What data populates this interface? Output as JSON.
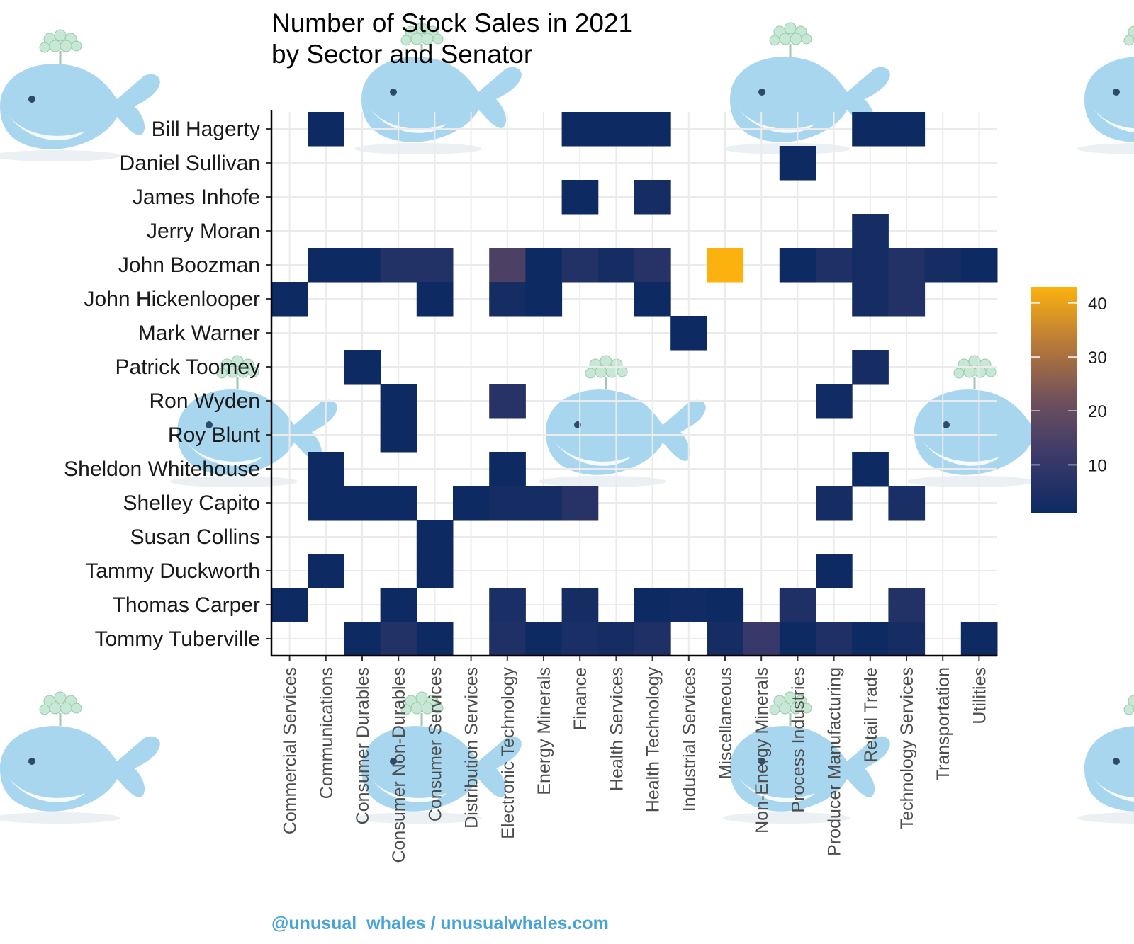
{
  "chart_data": {
    "type": "heatmap",
    "title": "Number of Stock Sales in 2021",
    "subtitle": "by Sector and Senator",
    "xlabel": "",
    "ylabel": "",
    "x_categories": [
      "Commercial Services",
      "Communications",
      "Consumer Durables",
      "Consumer Non-Durables",
      "Consumer Services",
      "Distribution Services",
      "Electronic Technology",
      "Energy Minerals",
      "Finance",
      "Health Services",
      "Health Technology",
      "Industrial Services",
      "Miscellaneous",
      "Non-Energy Minerals",
      "Process Industries",
      "Producer Manufacturing",
      "Retail Trade",
      "Technology Services",
      "Transportation",
      "Utilities"
    ],
    "y_categories": [
      "Bill Hagerty",
      "Daniel Sullivan",
      "James Inhofe",
      "Jerry Moran",
      "John Boozman",
      "John Hickenlooper",
      "Mark Warner",
      "Patrick Toomey",
      "Ron Wyden",
      "Roy Blunt",
      "Sheldon Whitehouse",
      "Shelley Capito",
      "Susan Collins",
      "Tammy Duckworth",
      "Thomas Carper",
      "Tommy Tuberville"
    ],
    "values": [
      [
        0,
        1,
        0,
        0,
        0,
        0,
        0,
        0,
        1,
        1,
        1,
        0,
        0,
        0,
        0,
        0,
        1,
        1,
        0,
        0
      ],
      [
        0,
        0,
        0,
        0,
        0,
        0,
        0,
        0,
        0,
        0,
        0,
        0,
        0,
        0,
        1,
        0,
        0,
        0,
        0,
        0
      ],
      [
        0,
        0,
        0,
        0,
        0,
        0,
        0,
        0,
        1,
        0,
        3,
        0,
        0,
        0,
        0,
        0,
        0,
        0,
        0,
        0
      ],
      [
        0,
        0,
        0,
        0,
        0,
        0,
        0,
        0,
        0,
        0,
        0,
        0,
        0,
        0,
        0,
        0,
        3,
        0,
        0,
        0
      ],
      [
        0,
        1,
        1,
        6,
        6,
        0,
        15,
        1,
        6,
        3,
        7,
        0,
        43,
        0,
        1,
        5,
        3,
        6,
        3,
        1
      ],
      [
        1,
        0,
        0,
        0,
        1,
        0,
        3,
        1,
        0,
        0,
        1,
        0,
        0,
        0,
        0,
        0,
        3,
        6,
        0,
        0
      ],
      [
        0,
        0,
        0,
        0,
        0,
        0,
        0,
        0,
        0,
        0,
        0,
        1,
        0,
        0,
        0,
        0,
        0,
        0,
        0,
        0
      ],
      [
        0,
        0,
        1,
        0,
        0,
        0,
        0,
        0,
        0,
        0,
        0,
        0,
        0,
        0,
        0,
        0,
        3,
        0,
        0,
        0
      ],
      [
        0,
        0,
        0,
        1,
        0,
        0,
        7,
        0,
        0,
        0,
        0,
        0,
        0,
        0,
        0,
        2,
        0,
        0,
        0,
        0
      ],
      [
        0,
        0,
        0,
        1,
        0,
        0,
        0,
        0,
        0,
        0,
        0,
        0,
        0,
        0,
        0,
        0,
        0,
        0,
        0,
        0
      ],
      [
        0,
        1,
        0,
        0,
        0,
        0,
        1,
        0,
        0,
        0,
        0,
        0,
        0,
        0,
        0,
        0,
        1,
        0,
        0,
        0
      ],
      [
        0,
        1,
        1,
        1,
        0,
        1,
        3,
        3,
        7,
        0,
        0,
        0,
        0,
        0,
        0,
        3,
        0,
        4,
        0,
        0
      ],
      [
        0,
        0,
        0,
        0,
        1,
        0,
        0,
        0,
        0,
        0,
        0,
        0,
        0,
        0,
        0,
        0,
        0,
        0,
        0,
        0
      ],
      [
        0,
        1,
        0,
        0,
        1,
        0,
        0,
        0,
        0,
        0,
        0,
        0,
        0,
        0,
        0,
        1,
        0,
        0,
        0,
        0
      ],
      [
        1,
        0,
        0,
        1,
        0,
        0,
        4,
        0,
        3,
        0,
        1,
        2,
        1,
        0,
        5,
        0,
        0,
        6,
        0,
        0
      ],
      [
        0,
        0,
        1,
        6,
        1,
        0,
        5,
        1,
        4,
        3,
        5,
        0,
        3,
        11,
        1,
        5,
        1,
        3,
        0,
        1
      ]
    ],
    "legend": {
      "title": "",
      "ticks": [
        10,
        20,
        30,
        40
      ],
      "min": 1,
      "max": 43,
      "position": "right"
    },
    "color_scale": [
      "#0d2a63",
      "#3a3a6a",
      "#70505c",
      "#b97a38",
      "#fcb20e"
    ],
    "grid": true
  },
  "credit": "@unusual_whales / unusualwhales.com",
  "watermark": "whale-logo"
}
